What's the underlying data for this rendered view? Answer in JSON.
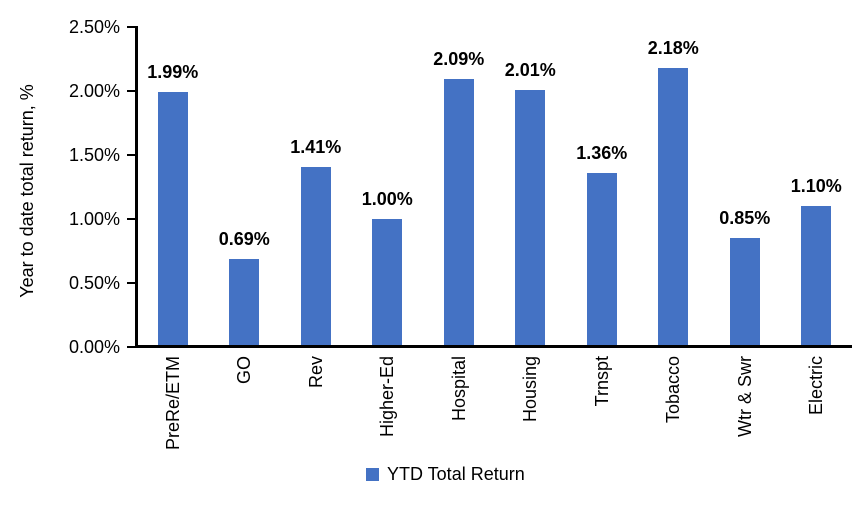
{
  "chart_data": {
    "type": "bar",
    "title": "",
    "ylabel": "Year to date total return, %",
    "xlabel": "",
    "categories": [
      "PreRe/ETM",
      "GO",
      "Rev",
      "Higher-Ed",
      "Hospital",
      "Housing",
      "Trnspt",
      "Tobacco",
      "Wtr & Swr",
      "Electric"
    ],
    "values": [
      1.99,
      0.69,
      1.41,
      1.0,
      2.09,
      2.01,
      1.36,
      2.18,
      0.85,
      1.1
    ],
    "data_labels": [
      "1.99%",
      "0.69%",
      "1.41%",
      "1.00%",
      "2.09%",
      "2.01%",
      "1.36%",
      "2.18%",
      "0.85%",
      "1.10%"
    ],
    "ylim": [
      0,
      2.5
    ],
    "yticks": {
      "values": [
        0,
        0.5,
        1.0,
        1.5,
        2.0,
        2.5
      ],
      "labels": [
        "0.00%",
        "0.50%",
        "1.00%",
        "1.50%",
        "2.00%",
        "2.50%"
      ]
    },
    "grid": false,
    "bar_color": "#4472C4",
    "axis_color": "#000000",
    "text_color": "#000000",
    "legend": {
      "position": "bottom",
      "entries": [
        {
          "label": "YTD Total Return",
          "color": "#4472C4"
        }
      ]
    }
  }
}
